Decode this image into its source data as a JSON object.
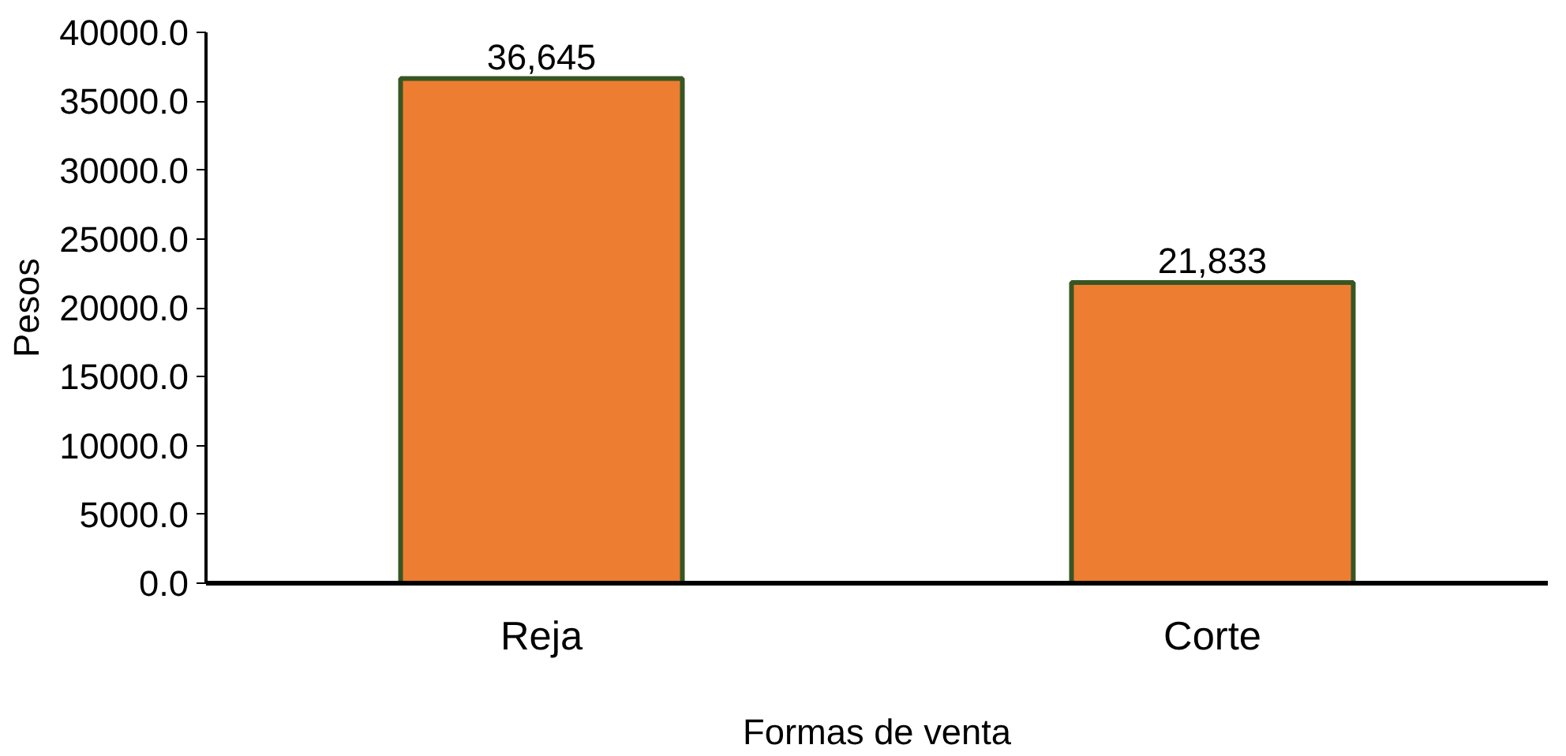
{
  "chart_data": {
    "type": "bar",
    "xlabel": "Formas de venta",
    "ylabel": "Pesos",
    "categories": [
      "Reja",
      "Corte"
    ],
    "values": [
      36645,
      21833
    ],
    "value_labels": [
      "36,645",
      "21,833"
    ],
    "color": "#ed7d31",
    "ylim": [
      0,
      40000
    ],
    "yticks": [
      {
        "value": 0,
        "label": "0.0"
      },
      {
        "value": 5000,
        "label": "5000.0"
      },
      {
        "value": 10000,
        "label": "10000.0"
      },
      {
        "value": 15000,
        "label": "15000.0"
      },
      {
        "value": 20000,
        "label": "20000.0"
      },
      {
        "value": 25000,
        "label": "25000.0"
      },
      {
        "value": 30000,
        "label": "30000.0"
      },
      {
        "value": 35000,
        "label": "35000.0"
      },
      {
        "value": 40000,
        "label": "40000.0"
      }
    ],
    "grid": false
  }
}
